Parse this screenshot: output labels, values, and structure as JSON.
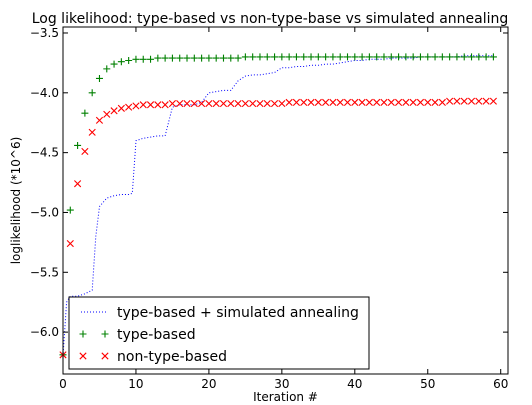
{
  "chart_data": {
    "type": "line",
    "title": "Log likelihood: type-based vs non-type-base vs simulated annealing",
    "xlabel": "Iteration #",
    "ylabel": "loglikelihood (*10^6)",
    "xlim": [
      0,
      61
    ],
    "ylim": [
      -6.35,
      -3.45
    ],
    "xticks": [
      0,
      10,
      20,
      30,
      40,
      50,
      60
    ],
    "xtick_labels": [
      "0",
      "10",
      "20",
      "30",
      "40",
      "50",
      "60"
    ],
    "yticks": [
      -6.0,
      -5.5,
      -5.0,
      -4.5,
      -4.0,
      -3.5
    ],
    "ytick_labels": [
      "−6.0",
      "−5.5",
      "−5.0",
      "−4.5",
      "−4.0",
      "−3.5"
    ],
    "grid": false,
    "legend_position": "lower-left",
    "series": [
      {
        "name": "type-based + simulated annealing",
        "style": "dotted-line",
        "color": "#0000ff",
        "x": [
          0,
          0.5,
          1,
          2,
          3,
          4,
          4.5,
          5,
          6,
          7,
          8,
          9,
          9.5,
          10,
          11,
          12,
          13,
          14,
          15,
          16,
          17,
          18,
          19,
          20,
          21,
          22,
          23,
          24,
          25,
          26,
          27,
          28,
          29,
          30,
          31,
          32,
          33,
          34,
          35,
          36,
          37,
          38,
          39,
          40,
          41,
          42,
          43,
          44,
          45,
          46,
          47,
          48,
          49,
          50,
          51,
          52,
          53,
          54,
          55,
          56,
          57,
          58,
          59
        ],
        "y": [
          -6.2,
          -5.75,
          -5.7,
          -5.7,
          -5.68,
          -5.65,
          -5.2,
          -4.95,
          -4.88,
          -4.86,
          -4.85,
          -4.85,
          -4.84,
          -4.4,
          -4.38,
          -4.37,
          -4.36,
          -4.36,
          -4.12,
          -4.1,
          -4.1,
          -4.1,
          -4.08,
          -4.0,
          -3.99,
          -3.98,
          -3.98,
          -3.9,
          -3.86,
          -3.85,
          -3.85,
          -3.84,
          -3.83,
          -3.79,
          -3.79,
          -3.78,
          -3.78,
          -3.77,
          -3.77,
          -3.76,
          -3.76,
          -3.75,
          -3.74,
          -3.73,
          -3.73,
          -3.72,
          -3.72,
          -3.72,
          -3.71,
          -3.71,
          -3.71,
          -3.71,
          -3.7,
          -3.7,
          -3.7,
          -3.7,
          -3.7,
          -3.7,
          -3.69,
          -3.69,
          -3.69,
          -3.69,
          -3.69
        ]
      },
      {
        "name": "type-based",
        "style": "plus-markers",
        "color": "#008000",
        "x": [
          0,
          1,
          2,
          3,
          4,
          5,
          6,
          7,
          8,
          9,
          10,
          11,
          12,
          13,
          14,
          15,
          16,
          17,
          18,
          19,
          20,
          21,
          22,
          23,
          24,
          25,
          26,
          27,
          28,
          29,
          30,
          31,
          32,
          33,
          34,
          35,
          36,
          37,
          38,
          39,
          40,
          41,
          42,
          43,
          44,
          45,
          46,
          47,
          48,
          49,
          50,
          51,
          52,
          53,
          54,
          55,
          56,
          57,
          58,
          59
        ],
        "y": [
          -6.19,
          -4.98,
          -4.44,
          -4.17,
          -4.0,
          -3.88,
          -3.8,
          -3.76,
          -3.74,
          -3.73,
          -3.72,
          -3.72,
          -3.72,
          -3.71,
          -3.71,
          -3.71,
          -3.71,
          -3.71,
          -3.71,
          -3.71,
          -3.71,
          -3.71,
          -3.71,
          -3.71,
          -3.71,
          -3.7,
          -3.7,
          -3.7,
          -3.7,
          -3.7,
          -3.7,
          -3.7,
          -3.7,
          -3.7,
          -3.7,
          -3.7,
          -3.7,
          -3.7,
          -3.7,
          -3.7,
          -3.7,
          -3.7,
          -3.7,
          -3.7,
          -3.7,
          -3.7,
          -3.7,
          -3.7,
          -3.7,
          -3.7,
          -3.7,
          -3.7,
          -3.7,
          -3.7,
          -3.7,
          -3.7,
          -3.7,
          -3.7,
          -3.7,
          -3.7
        ]
      },
      {
        "name": "non-type-based",
        "style": "x-markers",
        "color": "#ff0000",
        "x": [
          0,
          1,
          2,
          3,
          4,
          5,
          6,
          7,
          8,
          9,
          10,
          11,
          12,
          13,
          14,
          15,
          16,
          17,
          18,
          19,
          20,
          21,
          22,
          23,
          24,
          25,
          26,
          27,
          28,
          29,
          30,
          31,
          32,
          33,
          34,
          35,
          36,
          37,
          38,
          39,
          40,
          41,
          42,
          43,
          44,
          45,
          46,
          47,
          48,
          49,
          50,
          51,
          52,
          53,
          54,
          55,
          56,
          57,
          58,
          59
        ],
        "y": [
          -6.19,
          -5.26,
          -4.76,
          -4.49,
          -4.33,
          -4.23,
          -4.18,
          -4.15,
          -4.13,
          -4.12,
          -4.11,
          -4.1,
          -4.1,
          -4.1,
          -4.1,
          -4.09,
          -4.09,
          -4.09,
          -4.09,
          -4.09,
          -4.09,
          -4.09,
          -4.09,
          -4.09,
          -4.09,
          -4.09,
          -4.09,
          -4.09,
          -4.09,
          -4.09,
          -4.09,
          -4.08,
          -4.08,
          -4.08,
          -4.08,
          -4.08,
          -4.08,
          -4.08,
          -4.08,
          -4.08,
          -4.08,
          -4.08,
          -4.08,
          -4.08,
          -4.08,
          -4.08,
          -4.08,
          -4.08,
          -4.08,
          -4.08,
          -4.08,
          -4.08,
          -4.08,
          -4.07,
          -4.07,
          -4.07,
          -4.07,
          -4.07,
          -4.07,
          -4.07
        ]
      }
    ]
  }
}
